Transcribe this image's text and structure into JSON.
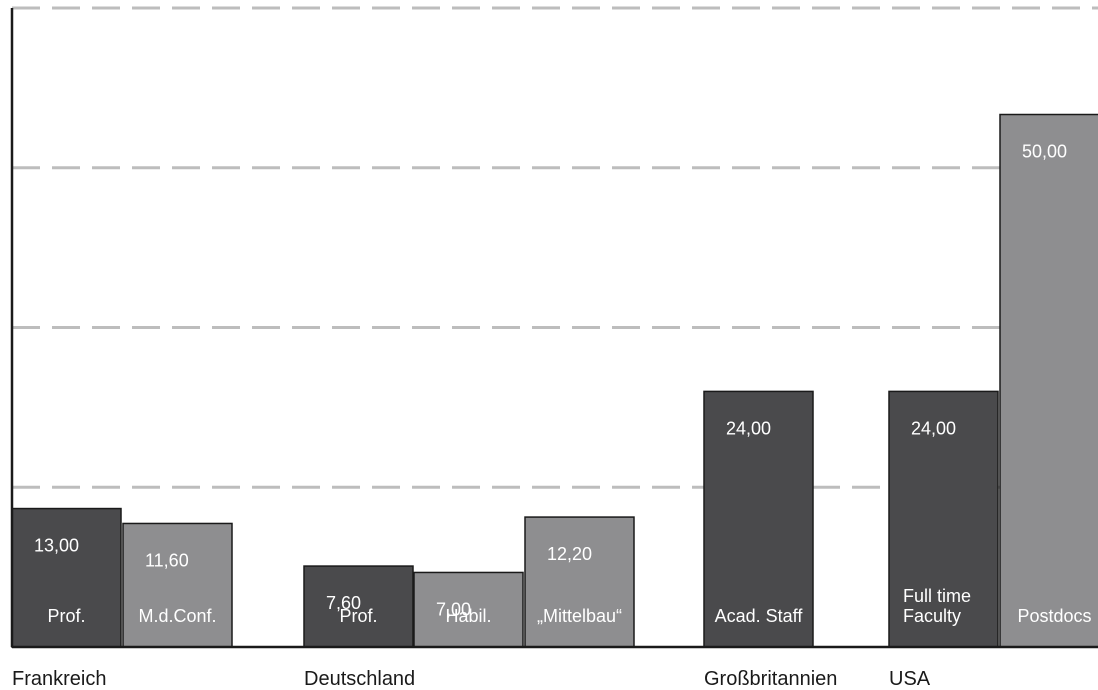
{
  "chart_data": {
    "type": "bar",
    "title": "",
    "xlabel": "",
    "ylabel": "",
    "ylim": [
      0,
      60
    ],
    "yticks": [
      0,
      15,
      30,
      45,
      60
    ],
    "grid": true,
    "legend": "none",
    "decimal_separator": ",",
    "value_format": "2 decimals",
    "colors": {
      "dark": "#4a4a4c",
      "light": "#8e8e90",
      "axis": "#1a1a1a",
      "grid": "#bdbdbd"
    },
    "groups": [
      {
        "label": "Frankreich",
        "bars": [
          {
            "label": "Prof.",
            "value": 13.0,
            "shade": "dark"
          },
          {
            "label": "M.d.Conf.",
            "value": 11.6,
            "shade": "light"
          }
        ]
      },
      {
        "label": "Deutschland",
        "bars": [
          {
            "label": "Prof.",
            "value": 7.6,
            "shade": "dark"
          },
          {
            "label": "Habil.",
            "value": 7.0,
            "shade": "light"
          },
          {
            "label": "„Mittelbau“",
            "value": 12.2,
            "shade": "light"
          }
        ]
      },
      {
        "label": "Großbritannien",
        "bars": [
          {
            "label": "Acad. Staff",
            "value": 24.0,
            "shade": "dark"
          }
        ]
      },
      {
        "label": "USA",
        "bars": [
          {
            "label": "Full time Faculty",
            "value": 24.0,
            "shade": "dark"
          },
          {
            "label": "Postdocs",
            "value": 50.0,
            "shade": "light"
          }
        ]
      }
    ]
  }
}
